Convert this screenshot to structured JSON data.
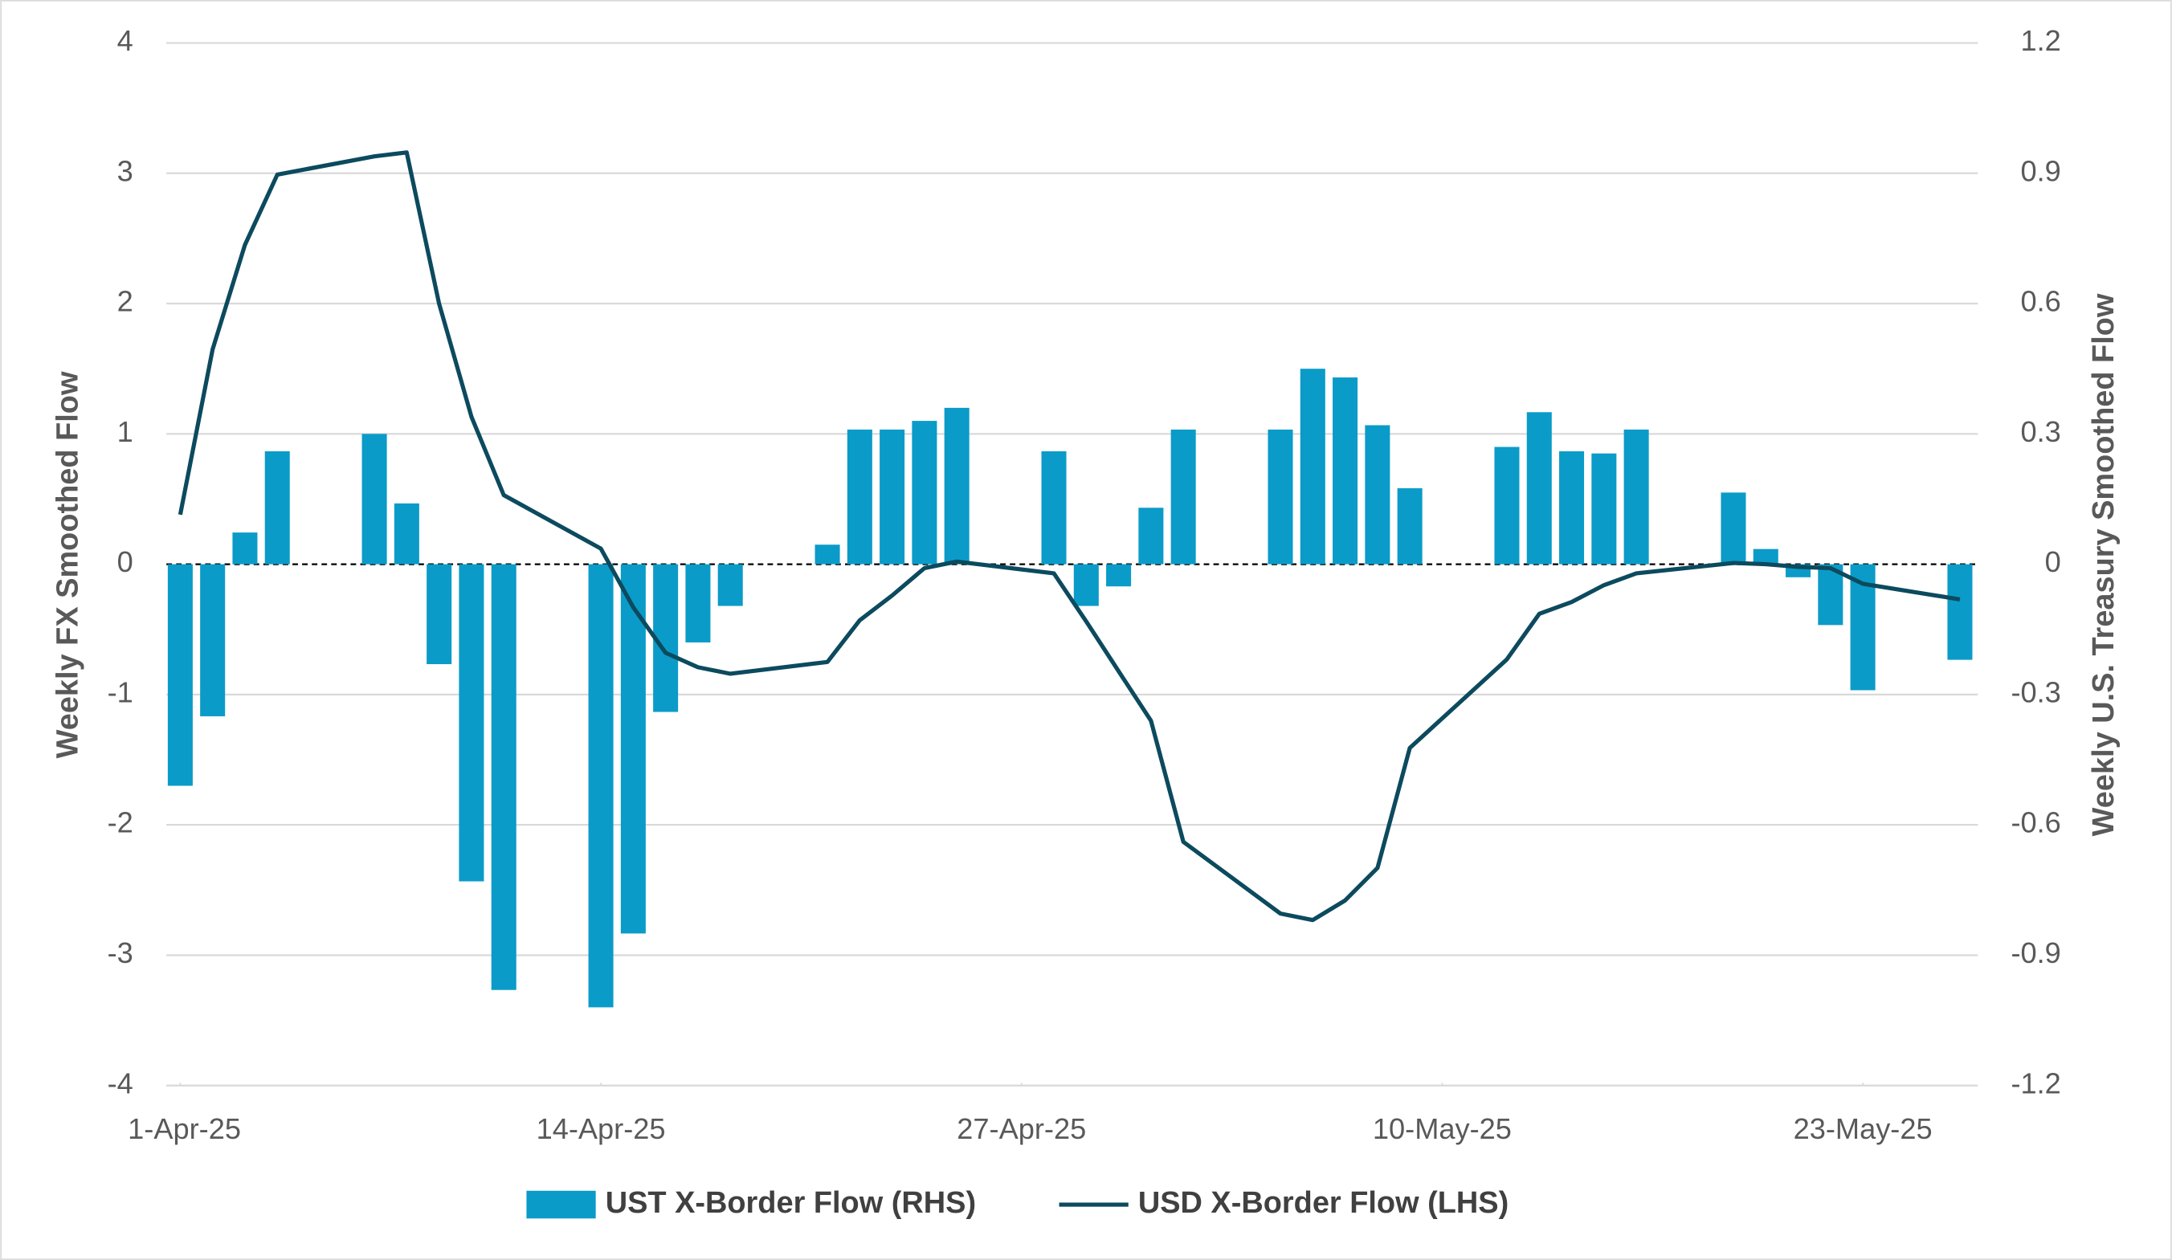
{
  "chart_data": {
    "type": "bar-line",
    "x": [
      "2025-04-01",
      "2025-04-02",
      "2025-04-03",
      "2025-04-04",
      "2025-04-07",
      "2025-04-08",
      "2025-04-09",
      "2025-04-10",
      "2025-04-11",
      "2025-04-14",
      "2025-04-15",
      "2025-04-16",
      "2025-04-17",
      "2025-04-18",
      "2025-04-21",
      "2025-04-22",
      "2025-04-23",
      "2025-04-24",
      "2025-04-25",
      "2025-04-28",
      "2025-04-29",
      "2025-04-30",
      "2025-05-01",
      "2025-05-02",
      "2025-05-05",
      "2025-05-06",
      "2025-05-07",
      "2025-05-08",
      "2025-05-09",
      "2025-05-12",
      "2025-05-13",
      "2025-05-14",
      "2025-05-15",
      "2025-05-16",
      "2025-05-19",
      "2025-05-20",
      "2025-05-21",
      "2025-05-22",
      "2025-05-23",
      "2025-05-26"
    ],
    "xticks": [
      {
        "value": "2025-04-01",
        "label": "1-Apr-25"
      },
      {
        "value": "2025-04-14",
        "label": "14-Apr-25"
      },
      {
        "value": "2025-04-27",
        "label": "27-Apr-25"
      },
      {
        "value": "2025-05-10",
        "label": "10-May-25"
      },
      {
        "value": "2025-05-23",
        "label": "23-May-25"
      }
    ],
    "series": [
      {
        "name": "UST X-Border Flow (RHS)",
        "type": "bar",
        "axis": "y2",
        "color": "#0b9bc8",
        "values": [
          -0.51,
          -0.35,
          0.073,
          0.26,
          0.3,
          0.14,
          -0.23,
          -0.73,
          -0.98,
          -1.02,
          -0.85,
          -0.34,
          -0.18,
          -0.096,
          0.045,
          0.31,
          0.31,
          0.33,
          0.36,
          0.26,
          -0.096,
          -0.051,
          0.13,
          0.31,
          0.31,
          0.45,
          0.43,
          0.32,
          0.175,
          0.27,
          0.35,
          0.26,
          0.255,
          0.31,
          0.165,
          0.035,
          -0.03,
          -0.14,
          -0.29,
          -0.22
        ]
      },
      {
        "name": "USD X-Border Flow (LHS)",
        "type": "line",
        "color": "#0c4a5e",
        "values": [
          0.38,
          1.65,
          2.45,
          2.99,
          3.13,
          3.16,
          2.0,
          1.13,
          0.53,
          0.12,
          -0.33,
          -0.68,
          -0.79,
          -0.84,
          -0.75,
          -0.43,
          -0.24,
          -0.03,
          0.02,
          -0.07,
          -0.44,
          -0.82,
          -1.2,
          -2.13,
          -2.68,
          -2.73,
          -2.58,
          -2.33,
          -1.41,
          -0.73,
          -0.38,
          -0.29,
          -0.16,
          -0.07,
          0.01,
          0.0,
          -0.02,
          -0.03,
          -0.15,
          -0.27
        ]
      }
    ],
    "ylabel": "Weekly FX Smoothed Flow",
    "y2label": "Weekly U.S. Treasury Smoothed Flow",
    "ylim": [
      -4,
      4
    ],
    "yticks": [
      -4,
      -3,
      -2,
      -1,
      0,
      1,
      2,
      3,
      4
    ],
    "y2lim": [
      -1.2,
      1.2
    ],
    "y2ticks": [
      -1.2,
      -0.9,
      -0.6,
      -0.3,
      0,
      0.3,
      0.6,
      0.9,
      1.2
    ],
    "grid": true,
    "legend": "bottom"
  }
}
